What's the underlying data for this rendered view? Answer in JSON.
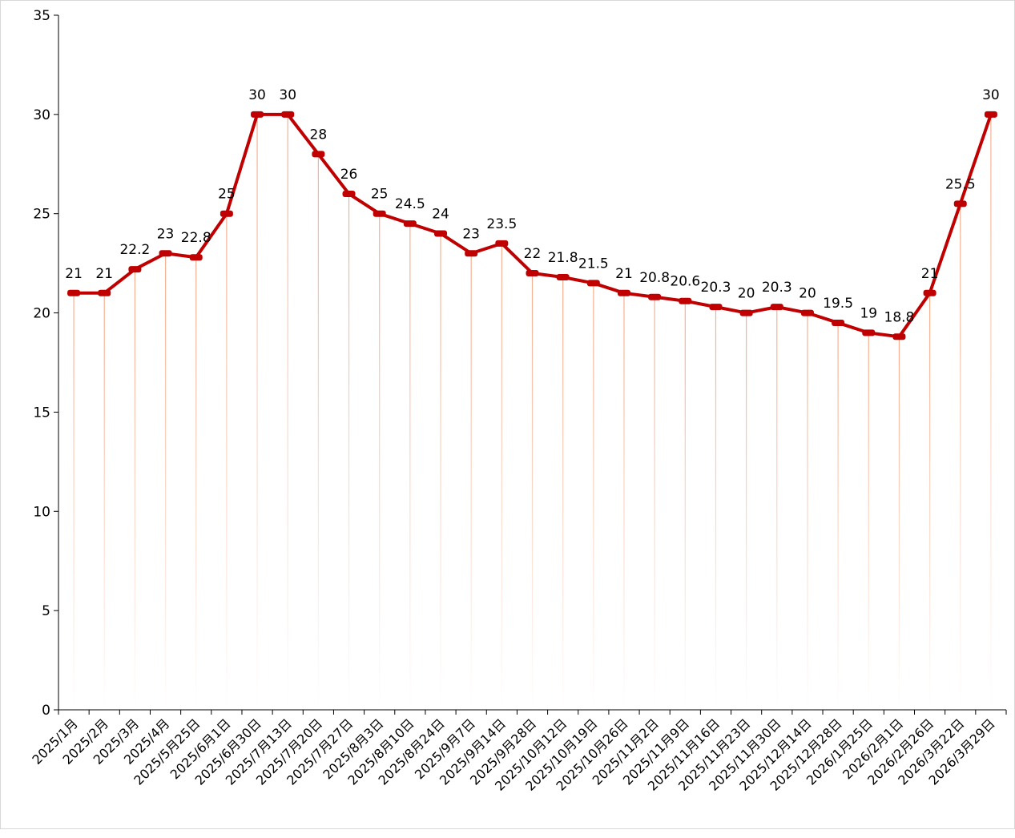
{
  "chart_data": {
    "type": "line",
    "title": "",
    "xlabel": "",
    "ylabel": "",
    "ylim": [
      0,
      35
    ],
    "yticks": [
      0,
      5,
      10,
      15,
      20,
      25,
      30,
      35
    ],
    "grid": false,
    "legend": "none",
    "categories": [
      "2025/1月",
      "2025/2月",
      "2025/3月",
      "2025/4月",
      "2025/5月25日",
      "2025/6月1日",
      "2025/6月30日",
      "2025/7月13日",
      "2025/7月20日",
      "2025/7月27日",
      "2025/8月3日",
      "2025/8月10日",
      "2025/8月24日",
      "2025/9月7日",
      "2025/9月14日",
      "2025/9月28日",
      "2025/10月12日",
      "2025/10月19日",
      "2025/10月26日",
      "2025/11月2日",
      "2025/11月9日",
      "2025/11月16日",
      "2025/11月23日",
      "2025/11月30日",
      "2025/12月14日",
      "2025/12月28日",
      "2026/1月25日",
      "2026/2月1日",
      "2026/2月26日",
      "2026/3月22日",
      "2026/3月29日"
    ],
    "series": [
      {
        "values": [
          21,
          21,
          22.2,
          23,
          22.8,
          25,
          30,
          30,
          28,
          26,
          25,
          24.5,
          24,
          23,
          23.5,
          22,
          21.8,
          21.5,
          21,
          20.8,
          20.6,
          20.3,
          20,
          20.3,
          20,
          19.5,
          19,
          18.8,
          21,
          25.5,
          30
        ]
      }
    ],
    "colors": {
      "line": "#c00000",
      "drop_line": "#f4a582",
      "axis": "#000000"
    },
    "data_labels": true
  }
}
